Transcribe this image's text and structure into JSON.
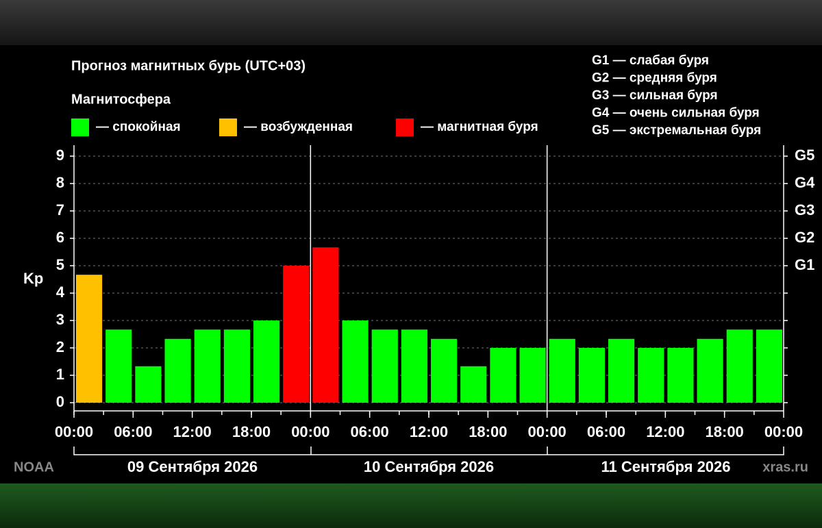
{
  "chart_data": {
    "type": "bar",
    "title": "Прогноз магнитных бурь (UTC+03)",
    "legend_title": "Магнитосфера",
    "legend": [
      {
        "label": "— спокойная",
        "color": "#00ff00"
      },
      {
        "label": "— возбужденная",
        "color": "#ffc000"
      },
      {
        "label": "— магнитная буря",
        "color": "#ff0000"
      }
    ],
    "g_legend": [
      "G1 — слабая буря",
      "G2 — средняя буря",
      "G3 — сильная буря",
      "G4 — очень сильная буря",
      "G5 — экстремальная буря"
    ],
    "y_label": "Kp",
    "x": [
      0,
      3,
      6,
      9,
      12,
      15,
      18,
      21,
      24,
      27,
      30,
      33,
      36,
      39,
      42,
      45,
      48,
      51,
      54,
      57,
      60,
      63,
      66,
      69
    ],
    "values": [
      4.67,
      2.67,
      1.33,
      2.33,
      2.67,
      2.67,
      3.0,
      5.0,
      5.67,
      3.0,
      2.67,
      2.67,
      2.33,
      1.33,
      2.0,
      2.0,
      2.33,
      2.0,
      2.33,
      2.0,
      2.0,
      2.33,
      2.67,
      2.67
    ],
    "colors": [
      "#ffc000",
      "#00ff00",
      "#00ff00",
      "#00ff00",
      "#00ff00",
      "#00ff00",
      "#00ff00",
      "#ff0000",
      "#ff0000",
      "#00ff00",
      "#00ff00",
      "#00ff00",
      "#00ff00",
      "#00ff00",
      "#00ff00",
      "#00ff00",
      "#00ff00",
      "#00ff00",
      "#00ff00",
      "#00ff00",
      "#00ff00",
      "#00ff00",
      "#00ff00",
      "#00ff00"
    ],
    "xlim": [
      0,
      72
    ],
    "xticks": [
      {
        "value": 0,
        "label": "00:00"
      },
      {
        "value": 6,
        "label": "06:00"
      },
      {
        "value": 12,
        "label": "12:00"
      },
      {
        "value": 18,
        "label": "18:00"
      },
      {
        "value": 24,
        "label": "00:00"
      },
      {
        "value": 30,
        "label": "06:00"
      },
      {
        "value": 36,
        "label": "12:00"
      },
      {
        "value": 42,
        "label": "18:00"
      },
      {
        "value": 48,
        "label": "00:00"
      },
      {
        "value": 54,
        "label": "06:00"
      },
      {
        "value": 60,
        "label": "12:00"
      },
      {
        "value": 66,
        "label": "18:00"
      },
      {
        "value": 72,
        "label": "00:00"
      }
    ],
    "ylim": [
      -0.3,
      9.4
    ],
    "yticks": [
      0,
      1,
      2,
      3,
      4,
      5,
      6,
      7,
      8,
      9
    ],
    "y2lim": [
      -0.3,
      9.4
    ],
    "y2ticks": [
      {
        "value": 5,
        "label": "G1"
      },
      {
        "value": 6,
        "label": "G2"
      },
      {
        "value": 7,
        "label": "G3"
      },
      {
        "value": 8,
        "label": "G4"
      },
      {
        "value": 9,
        "label": "G5"
      }
    ],
    "grid": true,
    "days": [
      "09 Сентября 2026",
      "10 Сентября 2026",
      "11 Сентября 2026"
    ],
    "source": "NOAA",
    "site": "xras.ru"
  }
}
